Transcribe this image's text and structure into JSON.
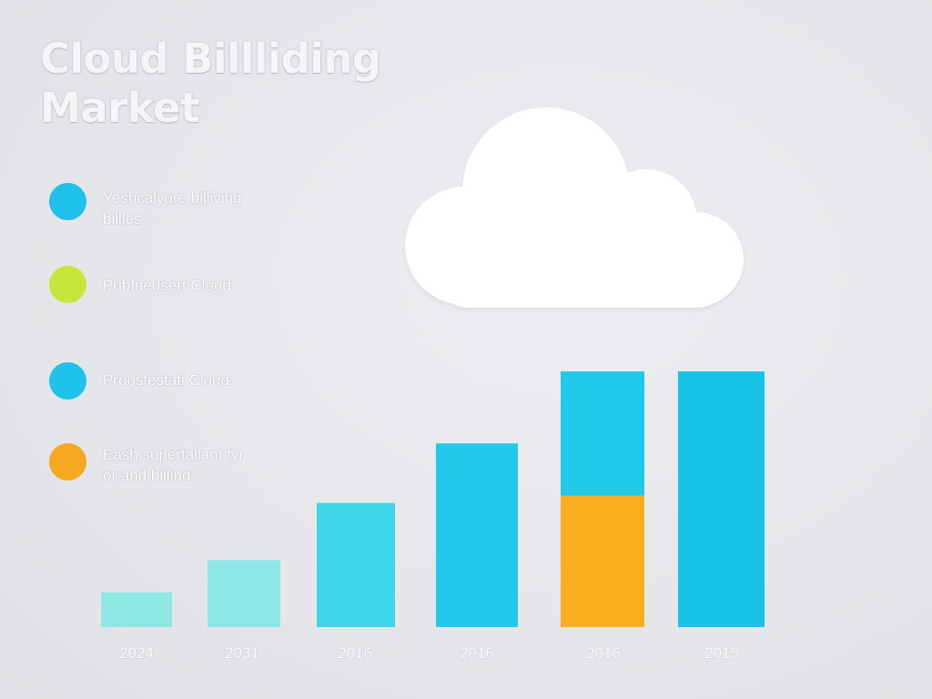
{
  "title": {
    "line1": "Cloud Billliding",
    "line2": "Market"
  },
  "legend": [
    {
      "label_line1": "Yeshcalyure billiving",
      "label_line2": "billles",
      "color": "#1fc0ea"
    },
    {
      "label_line1": "Pubfnedsert Cloud",
      "label_line2": "",
      "color": "#c6e63b"
    },
    {
      "label_line1": "Proosfestati Cloud:",
      "label_line2": "",
      "color": "#1fc3ea"
    },
    {
      "label_line1": "Eash supertallant fyr",
      "label_line2": "or and billing:",
      "color": "#f7a823"
    }
  ],
  "chart_data": {
    "type": "bar",
    "title": "Cloud Billliding Market",
    "xlabel": "",
    "ylabel": "",
    "categories": [
      "2024",
      "2031",
      "2016",
      "2016",
      "2016",
      "2015"
    ],
    "series": [
      {
        "values": [
          14,
          27,
          50,
          74,
          53,
          103
        ],
        "colors": [
          "#8fe8e4",
          "#8ee6e4",
          "#3fd6ea",
          "#22c9ea",
          "#f8ae1f",
          "#18c3ea"
        ]
      },
      {
        "values": [
          0,
          0,
          0,
          0,
          50,
          0
        ],
        "colors": [
          "#22c9ea",
          "#22c9ea",
          "#22c9ea",
          "#22c9ea",
          "#20c8ea",
          "#22c9ea"
        ]
      }
    ],
    "stacked": true,
    "ylim": [
      0,
      110
    ],
    "grid": false,
    "legend_placement": "left"
  }
}
